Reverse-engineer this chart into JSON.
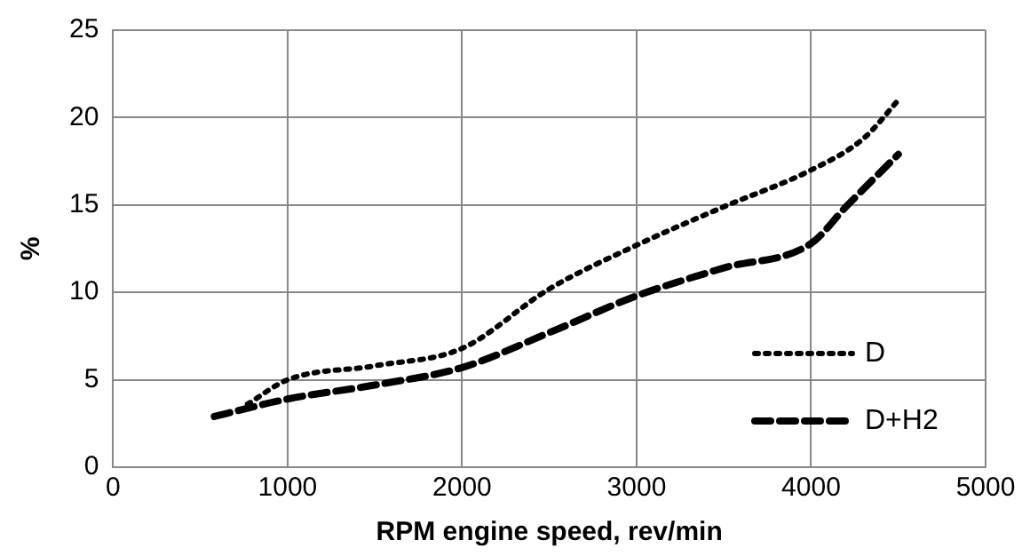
{
  "chart_data": {
    "type": "line",
    "xlabel": "RPM engine speed, rev/min",
    "ylabel": "%",
    "xlim": [
      0,
      5000
    ],
    "xticks": [
      0,
      1000,
      2000,
      3000,
      4000,
      5000
    ],
    "ylim": [
      0,
      25
    ],
    "yticks": [
      0,
      5,
      10,
      15,
      20,
      25
    ],
    "grid": true,
    "legend": "bottom right",
    "marker": "none",
    "series": [
      {
        "name": "D",
        "color": "#000000",
        "line_style": "dotted",
        "x": [
          770,
          1000,
          1500,
          2000,
          2500,
          3000,
          3500,
          4000,
          4300,
          4500
        ],
        "values": [
          3.6,
          5.0,
          5.8,
          6.8,
          10.2,
          12.7,
          14.9,
          17.0,
          18.8,
          21
        ]
      },
      {
        "name": "D+H2",
        "color": "#000000",
        "line_style": "dashed",
        "x": [
          580,
          1000,
          1500,
          2000,
          2500,
          3000,
          3500,
          4000,
          4200,
          4500
        ],
        "values": [
          2.9,
          3.9,
          4.7,
          5.7,
          7.7,
          9.8,
          11.4,
          12.8,
          14.9,
          17.9
        ]
      }
    ]
  }
}
